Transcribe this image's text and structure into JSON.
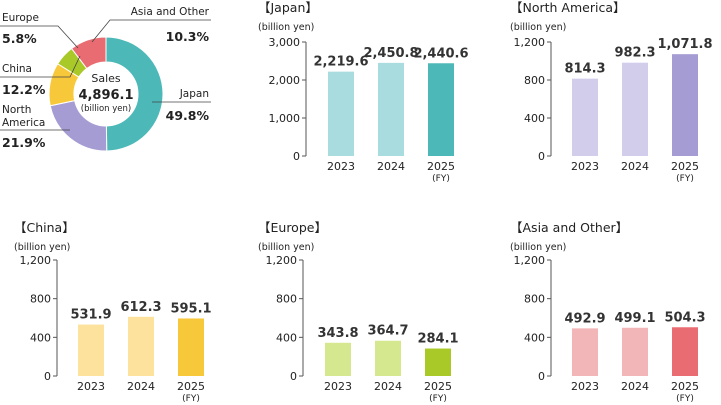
{
  "chart_data": [
    {
      "type": "pie",
      "center_label": "Sales",
      "center_value": "4,896.1",
      "center_unit": "(billion yen)",
      "slices": [
        {
          "name": "Japan",
          "value": 49.8,
          "label": "49.8%",
          "color": "#4cb8b8"
        },
        {
          "name": "North America",
          "value": 21.9,
          "label": "21.9%",
          "color": "#a59cd3"
        },
        {
          "name": "China",
          "value": 12.2,
          "label": "12.2%",
          "color": "#f7c93a"
        },
        {
          "name": "Europe",
          "value": 5.8,
          "label": "5.8%",
          "color": "#a8c928"
        },
        {
          "name": "Asia and Other",
          "value": 10.3,
          "label": "10.3%",
          "color": "#ea6c73"
        }
      ]
    },
    {
      "type": "bar",
      "title": "【Japan】",
      "ylabel": "(billion yen)",
      "ylim": [
        0,
        3000
      ],
      "yticks": [
        "0",
        "1,000",
        "2,000",
        "3,000"
      ],
      "categories": [
        "2023",
        "2024",
        "2025"
      ],
      "category_notes": [
        "",
        "",
        "(FY)"
      ],
      "values": [
        2219.6,
        2450.8,
        2440.6
      ],
      "value_labels": [
        "2,219.6",
        "2,450.8",
        "2,440.6"
      ],
      "colors": [
        "#a8dcdf",
        "#a8dcdf",
        "#4cb8b8"
      ]
    },
    {
      "type": "bar",
      "title": "【North America】",
      "ylabel": "(billion yen)",
      "ylim": [
        0,
        1200
      ],
      "yticks": [
        "0",
        "400",
        "800",
        "1,200"
      ],
      "categories": [
        "2023",
        "2024",
        "2025"
      ],
      "category_notes": [
        "",
        "",
        "(FY)"
      ],
      "values": [
        814.3,
        982.3,
        1071.8
      ],
      "value_labels": [
        "814.3",
        "982.3",
        "1,071.8"
      ],
      "colors": [
        "#d3cdec",
        "#d3cdec",
        "#a59cd3"
      ]
    },
    {
      "type": "bar",
      "title": "【China】",
      "ylabel": "(billion yen)",
      "ylim": [
        0,
        1200
      ],
      "yticks": [
        "0",
        "400",
        "800",
        "1,200"
      ],
      "categories": [
        "2023",
        "2024",
        "2025"
      ],
      "category_notes": [
        "",
        "",
        "(FY)"
      ],
      "values": [
        531.9,
        612.3,
        595.1
      ],
      "value_labels": [
        "531.9",
        "612.3",
        "595.1"
      ],
      "colors": [
        "#fde29d",
        "#fde29d",
        "#f7c93a"
      ]
    },
    {
      "type": "bar",
      "title": "【Europe】",
      "ylabel": "(billion yen)",
      "ylim": [
        0,
        1200
      ],
      "yticks": [
        "0",
        "400",
        "800",
        "1,200"
      ],
      "categories": [
        "2023",
        "2024",
        "2025"
      ],
      "category_notes": [
        "",
        "",
        "(FY)"
      ],
      "values": [
        343.8,
        364.7,
        284.1
      ],
      "value_labels": [
        "343.8",
        "364.7",
        "284.1"
      ],
      "colors": [
        "#d6e88f",
        "#d6e88f",
        "#a8c928"
      ]
    },
    {
      "type": "bar",
      "title": "【Asia and Other】",
      "ylabel": "(billion yen)",
      "ylim": [
        0,
        1200
      ],
      "yticks": [
        "0",
        "400",
        "800",
        "1,200"
      ],
      "categories": [
        "2023",
        "2024",
        "2025"
      ],
      "category_notes": [
        "",
        "",
        "(FY)"
      ],
      "values": [
        492.9,
        499.1,
        504.3
      ],
      "value_labels": [
        "492.9",
        "499.1",
        "504.3"
      ],
      "colors": [
        "#f3b6b8",
        "#f3b6b8",
        "#ea6c73"
      ]
    }
  ]
}
